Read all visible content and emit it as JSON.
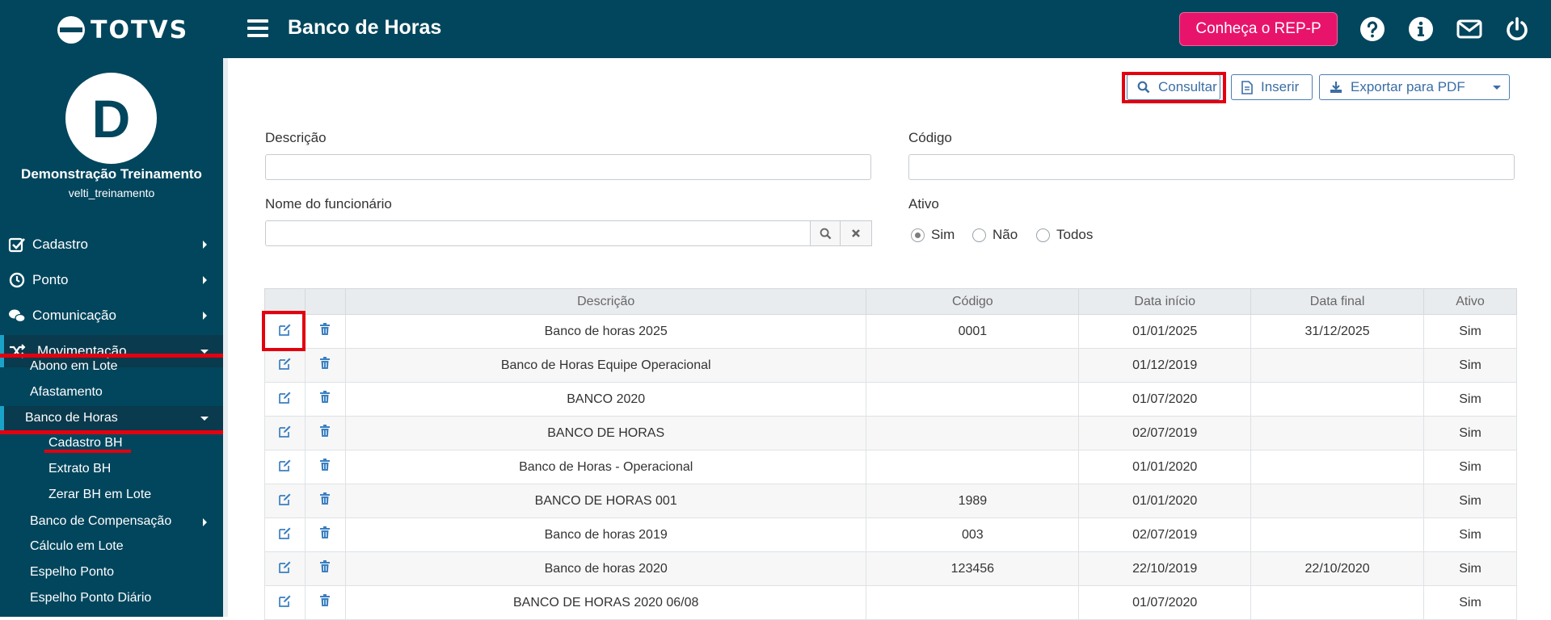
{
  "header": {
    "logo_text": "TOTVS",
    "title": "Banco de Horas",
    "rep_button": "Conheça o REP-P",
    "icons": [
      "question-circle-icon",
      "info-circle-icon",
      "envelope-icon",
      "power-icon"
    ]
  },
  "user": {
    "initial": "D",
    "name": "Demonstração Treinamento",
    "login": "velti_treinamento"
  },
  "sidebar": {
    "items": [
      {
        "label": "Cadastro",
        "icon": "check-square-icon"
      },
      {
        "label": "Ponto",
        "icon": "clock-icon"
      },
      {
        "label": "Comunicação",
        "icon": "chat-icon"
      },
      {
        "label": "Movimentação",
        "icon": "shuffle-icon"
      }
    ],
    "sub_items": [
      "Abono em Lote",
      "Afastamento",
      "Banco de Horas"
    ],
    "bh_children": [
      "Cadastro BH",
      "Extrato BH",
      "Zerar BH em Lote"
    ],
    "more_items": [
      "Banco de Compensação",
      "Cálculo em Lote",
      "Espelho Ponto",
      "Espelho Ponto Diário"
    ]
  },
  "toolbar": {
    "consultar": "Consultar",
    "inserir": "Inserir",
    "exportar": "Exportar para PDF"
  },
  "filters": {
    "descricao_label": "Descrição",
    "codigo_label": "Código",
    "funcionario_label": "Nome do funcionário",
    "ativo_label": "Ativo",
    "ativo_options": [
      "Sim",
      "Não",
      "Todos"
    ],
    "ativo_selected": "Sim"
  },
  "table": {
    "columns": [
      "Descrição",
      "Código",
      "Data início",
      "Data final",
      "Ativo"
    ],
    "rows": [
      {
        "descricao": "Banco de horas 2025",
        "codigo": "0001",
        "inicio": "01/01/2025",
        "final": "31/12/2025",
        "ativo": "Sim"
      },
      {
        "descricao": "Banco de Horas Equipe Operacional",
        "codigo": "",
        "inicio": "01/12/2019",
        "final": "",
        "ativo": "Sim"
      },
      {
        "descricao": "BANCO 2020",
        "codigo": "",
        "inicio": "01/07/2020",
        "final": "",
        "ativo": "Sim"
      },
      {
        "descricao": "BANCO DE HORAS",
        "codigo": "",
        "inicio": "02/07/2019",
        "final": "",
        "ativo": "Sim"
      },
      {
        "descricao": "Banco de Horas - Operacional",
        "codigo": "",
        "inicio": "01/01/2020",
        "final": "",
        "ativo": "Sim"
      },
      {
        "descricao": "BANCO DE HORAS 001",
        "codigo": "1989",
        "inicio": "01/01/2020",
        "final": "",
        "ativo": "Sim"
      },
      {
        "descricao": "Banco de horas 2019",
        "codigo": "003",
        "inicio": "02/07/2019",
        "final": "",
        "ativo": "Sim"
      },
      {
        "descricao": "Banco de horas 2020",
        "codigo": "123456",
        "inicio": "22/10/2019",
        "final": "22/10/2020",
        "ativo": "Sim"
      },
      {
        "descricao": "BANCO DE HORAS 2020 06/08",
        "codigo": "",
        "inicio": "01/07/2020",
        "final": "",
        "ativo": "Sim"
      }
    ]
  },
  "colors": {
    "primary": "#02465d",
    "accent": "#e8146b",
    "highlight": "#e3000f",
    "link": "#3a6ea5"
  }
}
